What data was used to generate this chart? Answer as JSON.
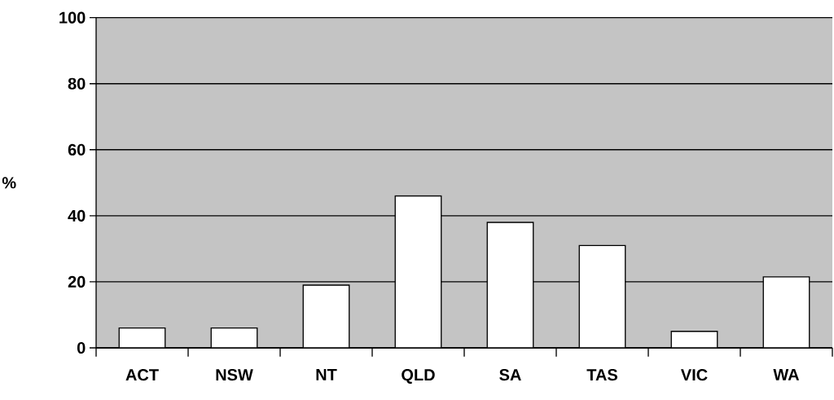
{
  "chart_data": {
    "type": "bar",
    "ylabel": "%",
    "categories": [
      "ACT",
      "NSW",
      "NT",
      "QLD",
      "SA",
      "TAS",
      "VIC",
      "WA"
    ],
    "values": [
      6,
      6,
      19,
      46,
      38,
      31,
      5,
      21.5
    ],
    "color": "#ffffff",
    "ylim": [
      0,
      100
    ],
    "yticks": [
      0,
      20,
      40,
      60,
      80,
      100
    ],
    "grid": "y"
  }
}
